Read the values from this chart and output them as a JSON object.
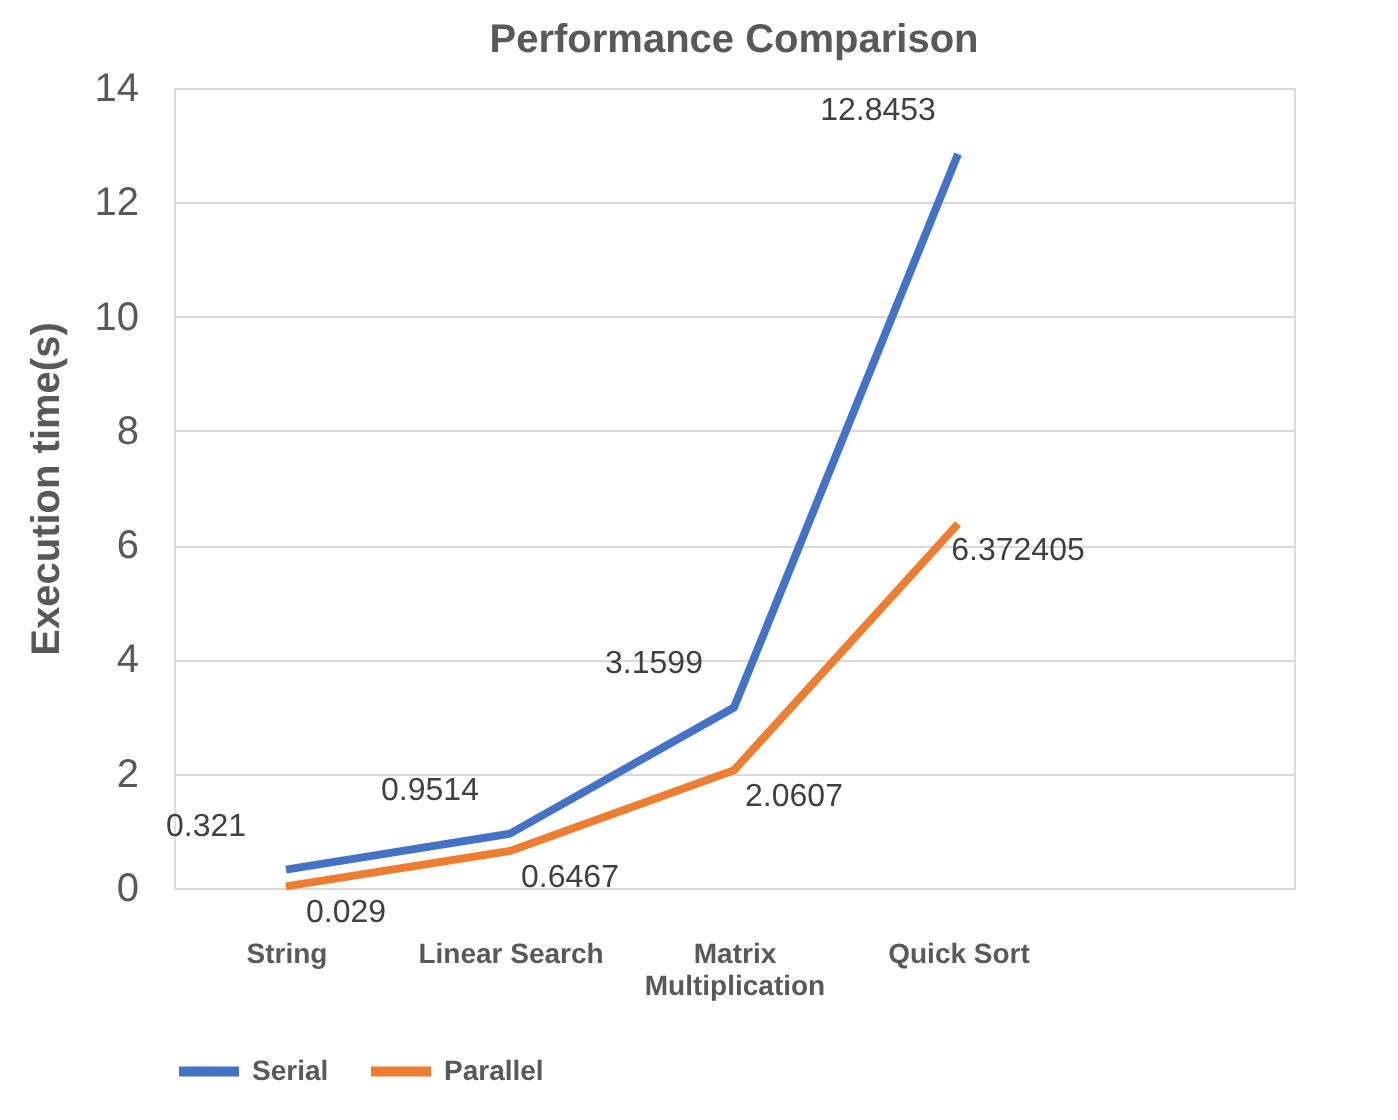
{
  "chart_data": {
    "type": "line",
    "title": "Performance Comparison",
    "ylabel": "Execution time(s)",
    "categories": [
      "String",
      "Linear Search",
      "Matrix Multiplication",
      "Quick Sort",
      null
    ],
    "series": [
      {
        "name": "Serial",
        "color": "#4472c4",
        "values": [
          0.321,
          0.9514,
          3.1599,
          12.8453,
          null
        ]
      },
      {
        "name": "Parallel",
        "color": "#ed7d31",
        "values": [
          0.029,
          0.6467,
          2.0607,
          6.372405,
          null
        ]
      }
    ],
    "ylim": [
      0,
      14
    ],
    "yticks": [
      0,
      2,
      4,
      6,
      8,
      10,
      12,
      14
    ],
    "grid": "y",
    "legend": "bottom",
    "data_labels": true,
    "marker": "none",
    "line_style": "solid"
  }
}
